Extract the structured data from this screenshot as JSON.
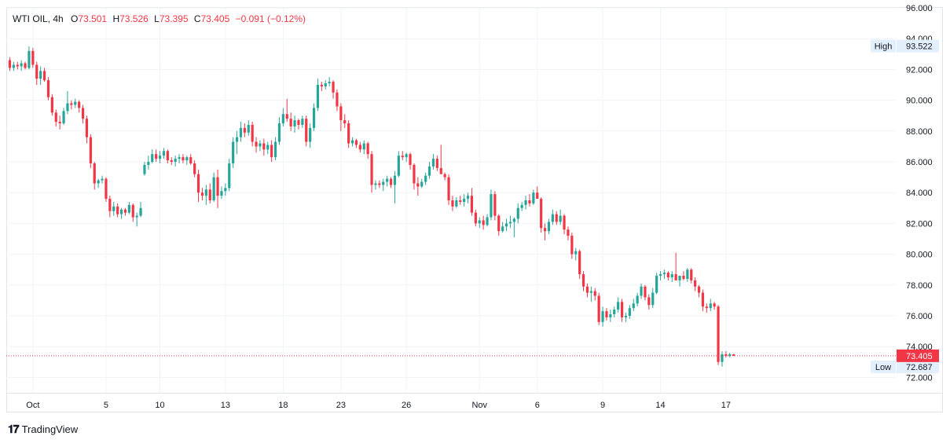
{
  "legend": {
    "symbol": "WTI OIL",
    "interval": "4h",
    "open_label": "O",
    "open": "73.501",
    "high_label": "H",
    "high": "73.526",
    "low_label": "L",
    "low": "73.395",
    "close_label": "C",
    "close": "73.405",
    "change": "−0.091 (−0.12%)"
  },
  "price_tags": {
    "high_label": "High",
    "high_value": "93.522",
    "low_label": "Low",
    "low_value": "72.687",
    "last_value": "73.405"
  },
  "branding": {
    "logo_text": "TradingView"
  },
  "colors": {
    "up": "#26a69a",
    "down": "#f23645",
    "grid": "#f0f3fa",
    "axis_text": "#131722",
    "last_line": "#f23645",
    "tag_bg": "#e3effd"
  },
  "chart_data": {
    "type": "candlestick",
    "title": "",
    "ylim": [
      71,
      96
    ],
    "y_ticks": [
      "72.000",
      "74.000",
      "76.000",
      "78.000",
      "80.000",
      "82.000",
      "84.000",
      "86.000",
      "88.000",
      "90.000",
      "92.000",
      "94.000",
      "96.000"
    ],
    "x_ticks": [
      {
        "label": "Oct",
        "index": 6
      },
      {
        "label": "5",
        "index": 25
      },
      {
        "label": "10",
        "index": 39
      },
      {
        "label": "13",
        "index": 56
      },
      {
        "label": "18",
        "index": 71
      },
      {
        "label": "23",
        "index": 86
      },
      {
        "label": "26",
        "index": 103
      },
      {
        "label": "Nov",
        "index": 122
      },
      {
        "label": "6",
        "index": 137
      },
      {
        "label": "9",
        "index": 154
      },
      {
        "label": "14",
        "index": 169
      },
      {
        "label": "17",
        "index": 186
      }
    ],
    "ohlc": [
      [
        92.6,
        92.8,
        91.9,
        92.1
      ],
      [
        92.1,
        92.5,
        91.9,
        92.3
      ],
      [
        92.3,
        92.5,
        92.0,
        92.2
      ],
      [
        92.2,
        92.6,
        91.9,
        92.4
      ],
      [
        92.4,
        92.5,
        92.0,
        92.1
      ],
      [
        92.1,
        93.5,
        92.0,
        93.2
      ],
      [
        93.2,
        93.4,
        92.1,
        92.3
      ],
      [
        92.3,
        92.5,
        91.0,
        91.4
      ],
      [
        91.4,
        92.2,
        91.0,
        91.9
      ],
      [
        91.9,
        92.1,
        91.2,
        91.3
      ],
      [
        91.3,
        91.5,
        90.0,
        90.2
      ],
      [
        90.2,
        90.4,
        89.0,
        89.2
      ],
      [
        89.2,
        89.4,
        88.3,
        88.6
      ],
      [
        88.6,
        89.0,
        88.1,
        88.5
      ],
      [
        88.5,
        89.5,
        88.4,
        89.3
      ],
      [
        89.3,
        90.6,
        89.1,
        89.8
      ],
      [
        89.8,
        90.0,
        89.4,
        89.7
      ],
      [
        89.7,
        90.1,
        89.5,
        89.9
      ],
      [
        89.9,
        90.0,
        89.2,
        89.5
      ],
      [
        89.5,
        89.7,
        88.5,
        88.8
      ],
      [
        88.8,
        89.0,
        87.2,
        87.6
      ],
      [
        87.6,
        87.8,
        85.6,
        85.9
      ],
      [
        85.9,
        86.0,
        84.2,
        84.6
      ],
      [
        84.6,
        84.9,
        84.3,
        84.8
      ],
      [
        84.8,
        85.1,
        84.6,
        84.9
      ],
      [
        84.9,
        85.0,
        83.4,
        83.6
      ],
      [
        83.6,
        83.8,
        82.4,
        82.8
      ],
      [
        82.8,
        83.4,
        82.5,
        83.1
      ],
      [
        83.1,
        83.3,
        82.4,
        82.6
      ],
      [
        82.6,
        83.0,
        82.3,
        82.9
      ],
      [
        82.9,
        83.0,
        82.5,
        82.7
      ],
      [
        82.7,
        83.4,
        82.6,
        83.2
      ],
      [
        83.2,
        83.3,
        82.1,
        82.4
      ],
      [
        82.4,
        82.7,
        81.8,
        82.5
      ],
      [
        82.5,
        83.4,
        82.4,
        83.0
      ],
      [
        85.2,
        86.0,
        85.1,
        85.8
      ],
      [
        85.8,
        86.4,
        85.5,
        86.0
      ],
      [
        86.0,
        86.8,
        85.9,
        86.5
      ],
      [
        86.5,
        86.8,
        86.0,
        86.2
      ],
      [
        86.2,
        86.7,
        85.9,
        86.4
      ],
      [
        86.4,
        86.9,
        86.2,
        86.7
      ],
      [
        86.7,
        86.8,
        85.9,
        86.1
      ],
      [
        86.1,
        86.3,
        85.8,
        86.0
      ],
      [
        86.0,
        86.4,
        85.7,
        86.2
      ],
      [
        86.2,
        86.5,
        85.9,
        86.3
      ],
      [
        86.3,
        86.5,
        85.9,
        86.1
      ],
      [
        86.1,
        86.4,
        85.8,
        86.3
      ],
      [
        86.3,
        86.5,
        85.8,
        85.9
      ],
      [
        85.9,
        86.1,
        85.0,
        85.2
      ],
      [
        85.2,
        85.5,
        83.4,
        84.0
      ],
      [
        84.0,
        84.3,
        83.5,
        83.8
      ],
      [
        83.8,
        84.5,
        83.2,
        84.2
      ],
      [
        84.2,
        84.6,
        83.3,
        83.5
      ],
      [
        83.5,
        85.3,
        83.4,
        85.0
      ],
      [
        85.0,
        85.5,
        83.0,
        83.8
      ],
      [
        83.8,
        84.4,
        83.6,
        84.1
      ],
      [
        84.1,
        84.6,
        83.8,
        84.3
      ],
      [
        84.3,
        86.2,
        84.1,
        85.9
      ],
      [
        85.9,
        87.6,
        85.6,
        87.3
      ],
      [
        87.3,
        88.0,
        86.5,
        87.6
      ],
      [
        87.6,
        88.6,
        87.3,
        88.2
      ],
      [
        88.2,
        88.5,
        87.6,
        87.9
      ],
      [
        87.9,
        88.7,
        87.7,
        88.4
      ],
      [
        88.4,
        88.6,
        87.0,
        87.3
      ],
      [
        87.3,
        87.6,
        86.6,
        87.0
      ],
      [
        87.0,
        87.4,
        86.7,
        87.2
      ],
      [
        87.2,
        87.5,
        86.4,
        86.8
      ],
      [
        86.8,
        87.3,
        86.5,
        87.1
      ],
      [
        87.1,
        87.4,
        86.0,
        86.3
      ],
      [
        86.3,
        87.6,
        86.1,
        87.3
      ],
      [
        87.3,
        88.9,
        87.1,
        88.5
      ],
      [
        88.5,
        89.5,
        88.3,
        89.1
      ],
      [
        89.1,
        90.1,
        88.6,
        88.8
      ],
      [
        88.8,
        89.2,
        88.0,
        88.3
      ],
      [
        88.3,
        89.0,
        87.9,
        88.7
      ],
      [
        88.7,
        88.8,
        88.1,
        88.4
      ],
      [
        88.4,
        89.0,
        88.2,
        88.8
      ],
      [
        88.8,
        89.0,
        87.0,
        87.3
      ],
      [
        87.3,
        88.5,
        86.9,
        88.2
      ],
      [
        88.2,
        89.8,
        88.0,
        89.5
      ],
      [
        89.5,
        91.4,
        89.3,
        91.0
      ],
      [
        91.0,
        91.2,
        90.6,
        90.9
      ],
      [
        90.9,
        91.3,
        90.7,
        91.1
      ],
      [
        91.1,
        91.5,
        90.9,
        91.2
      ],
      [
        91.2,
        91.3,
        90.1,
        90.5
      ],
      [
        90.5,
        90.7,
        89.3,
        89.6
      ],
      [
        89.6,
        89.8,
        88.0,
        88.7
      ],
      [
        88.7,
        89.1,
        88.2,
        88.5
      ],
      [
        88.5,
        88.7,
        86.9,
        87.2
      ],
      [
        87.2,
        87.6,
        87.0,
        87.4
      ],
      [
        87.4,
        87.5,
        86.9,
        87.1
      ],
      [
        87.1,
        87.3,
        86.6,
        86.8
      ],
      [
        86.8,
        87.4,
        86.5,
        87.2
      ],
      [
        87.2,
        87.3,
        86.2,
        86.5
      ],
      [
        86.5,
        86.7,
        84.0,
        84.5
      ],
      [
        84.5,
        84.8,
        84.2,
        84.6
      ],
      [
        84.6,
        84.8,
        84.3,
        84.5
      ],
      [
        84.5,
        84.9,
        84.1,
        84.7
      ],
      [
        84.7,
        85.1,
        84.4,
        84.9
      ],
      [
        84.9,
        85.0,
        84.3,
        84.5
      ],
      [
        84.5,
        85.4,
        83.3,
        85.1
      ],
      [
        85.1,
        86.7,
        85.0,
        86.4
      ],
      [
        86.4,
        86.7,
        86.1,
        86.3
      ],
      [
        86.3,
        86.6,
        86.0,
        86.5
      ],
      [
        86.5,
        86.6,
        85.5,
        85.8
      ],
      [
        85.8,
        85.9,
        84.2,
        84.6
      ],
      [
        84.6,
        85.0,
        83.8,
        84.4
      ],
      [
        84.4,
        84.9,
        84.3,
        84.7
      ],
      [
        84.7,
        85.3,
        84.5,
        85.1
      ],
      [
        85.1,
        86.0,
        84.9,
        85.7
      ],
      [
        85.7,
        86.5,
        85.5,
        86.2
      ],
      [
        86.2,
        86.4,
        85.4,
        85.6
      ],
      [
        85.6,
        87.1,
        85.4,
        85.2
      ],
      [
        85.2,
        85.3,
        84.8,
        85.0
      ],
      [
        85.0,
        85.2,
        83.2,
        83.5
      ],
      [
        83.5,
        83.8,
        82.8,
        83.1
      ],
      [
        83.1,
        83.7,
        83.0,
        83.5
      ],
      [
        83.5,
        83.8,
        83.2,
        83.4
      ],
      [
        83.4,
        83.9,
        83.1,
        83.6
      ],
      [
        83.6,
        84.0,
        83.3,
        83.8
      ],
      [
        83.8,
        84.3,
        82.5,
        82.7
      ],
      [
        82.7,
        82.9,
        81.8,
        82.0
      ],
      [
        82.0,
        82.4,
        81.7,
        82.2
      ],
      [
        82.2,
        82.5,
        81.6,
        81.9
      ],
      [
        81.9,
        82.6,
        81.8,
        82.4
      ],
      [
        82.4,
        84.2,
        82.2,
        83.9
      ],
      [
        83.9,
        84.1,
        82.2,
        82.5
      ],
      [
        82.5,
        82.6,
        81.2,
        81.5
      ],
      [
        81.5,
        82.1,
        81.4,
        81.8
      ],
      [
        81.8,
        82.3,
        81.5,
        82.0
      ],
      [
        82.0,
        82.5,
        81.7,
        82.1
      ],
      [
        82.1,
        82.4,
        81.1,
        82.3
      ],
      [
        82.3,
        83.3,
        82.0,
        83.0
      ],
      [
        83.0,
        83.4,
        82.8,
        83.2
      ],
      [
        83.2,
        83.8,
        82.9,
        83.5
      ],
      [
        83.5,
        83.9,
        83.1,
        83.3
      ],
      [
        83.3,
        84.2,
        83.2,
        84.0
      ],
      [
        84.0,
        84.4,
        83.7,
        83.6
      ],
      [
        83.6,
        83.7,
        81.4,
        81.7
      ],
      [
        81.7,
        82.0,
        80.9,
        81.5
      ],
      [
        81.5,
        82.3,
        81.3,
        82.1
      ],
      [
        82.1,
        82.9,
        81.9,
        82.6
      ],
      [
        82.6,
        82.8,
        81.9,
        82.1
      ],
      [
        82.1,
        82.9,
        81.9,
        82.5
      ],
      [
        82.5,
        82.6,
        81.3,
        81.6
      ],
      [
        81.6,
        81.8,
        80.9,
        81.2
      ],
      [
        81.2,
        81.4,
        79.7,
        80.0
      ],
      [
        80.0,
        80.4,
        79.6,
        80.2
      ],
      [
        80.2,
        80.3,
        78.4,
        78.7
      ],
      [
        78.7,
        78.9,
        77.6,
        77.9
      ],
      [
        77.9,
        78.1,
        77.2,
        77.5
      ],
      [
        77.5,
        77.9,
        76.9,
        77.6
      ],
      [
        77.6,
        77.8,
        77.0,
        77.3
      ],
      [
        77.3,
        77.5,
        75.4,
        75.6
      ],
      [
        75.6,
        76.6,
        75.3,
        76.3
      ],
      [
        76.3,
        76.5,
        75.7,
        75.9
      ],
      [
        75.9,
        76.4,
        75.6,
        76.1
      ],
      [
        76.1,
        76.6,
        75.9,
        76.4
      ],
      [
        76.4,
        77.2,
        76.2,
        76.9
      ],
      [
        76.9,
        77.1,
        75.6,
        75.9
      ],
      [
        75.9,
        76.2,
        75.6,
        76.0
      ],
      [
        76.0,
        76.7,
        75.8,
        76.5
      ],
      [
        76.5,
        77.1,
        76.3,
        76.8
      ],
      [
        76.8,
        77.5,
        76.6,
        77.3
      ],
      [
        77.3,
        78.1,
        77.1,
        77.9
      ],
      [
        77.9,
        78.0,
        77.0,
        77.2
      ],
      [
        77.2,
        77.4,
        76.4,
        76.7
      ],
      [
        76.7,
        77.8,
        76.5,
        77.5
      ],
      [
        77.5,
        78.8,
        77.4,
        78.6
      ],
      [
        78.6,
        78.9,
        78.3,
        78.7
      ],
      [
        78.7,
        79.0,
        78.4,
        78.8
      ],
      [
        78.8,
        78.9,
        78.3,
        78.5
      ],
      [
        78.5,
        78.9,
        78.2,
        78.7
      ],
      [
        78.7,
        80.1,
        78.5,
        78.3
      ],
      [
        78.3,
        78.5,
        77.9,
        78.6
      ],
      [
        78.6,
        78.9,
        78.3,
        78.4
      ],
      [
        78.4,
        79.1,
        78.2,
        79.0
      ],
      [
        79.0,
        79.1,
        78.1,
        78.3
      ],
      [
        78.3,
        78.5,
        77.6,
        77.9
      ],
      [
        77.9,
        78.0,
        77.2,
        77.5
      ],
      [
        77.5,
        77.7,
        76.3,
        76.6
      ],
      [
        76.6,
        76.8,
        76.2,
        76.5
      ],
      [
        76.5,
        77.1,
        76.3,
        76.8
      ],
      [
        76.8,
        76.9,
        76.4,
        76.6
      ],
      [
        76.6,
        76.7,
        72.8,
        73.0
      ],
      [
        73.0,
        73.7,
        72.7,
        73.5
      ],
      [
        73.5,
        73.7,
        73.3,
        73.4
      ],
      [
        73.4,
        73.6,
        73.3,
        73.5
      ],
      [
        73.5,
        73.526,
        73.395,
        73.405
      ]
    ]
  }
}
